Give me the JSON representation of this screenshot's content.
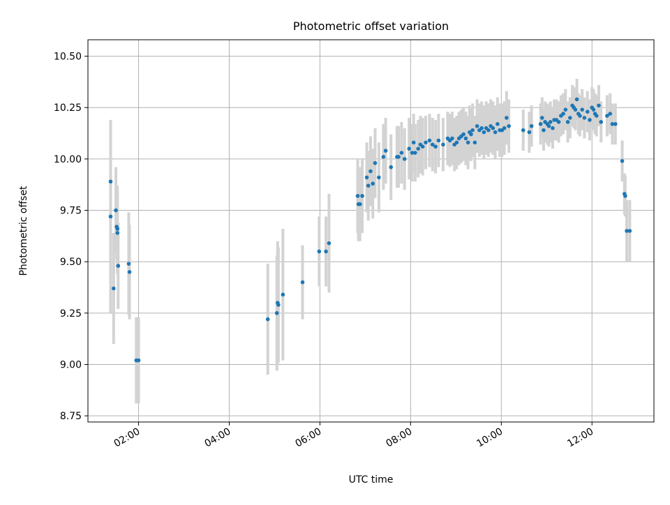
{
  "chart_data": {
    "type": "scatter",
    "title": "Photometric offset variation",
    "xlabel": "UTC time",
    "ylabel": "Photometric offset",
    "x_is_time": true,
    "xlim": [
      "00:53",
      "13:22"
    ],
    "ylim": [
      8.72,
      10.58
    ],
    "grid": true,
    "x_ticks": [
      "02:00",
      "04:00",
      "06:00",
      "08:00",
      "10:00",
      "12:00"
    ],
    "y_ticks": [
      "8.75",
      "9.00",
      "9.25",
      "9.50",
      "9.75",
      "10.00",
      "10.25",
      "10.50"
    ],
    "colors": {
      "point": "#1f77b4",
      "error_bar": "#d3d3d3",
      "grid": "#b0b0b0"
    },
    "series": [
      {
        "x": [
          "01:23",
          "01:23",
          "01:27",
          "01:30",
          "01:31",
          "01:32",
          "01:32",
          "01:33",
          "01:47",
          "01:48",
          "01:57",
          "02:00",
          "04:51",
          "05:03",
          "05:04",
          "05:05",
          "05:11",
          "05:37",
          "05:59",
          "06:08",
          "06:12",
          "06:50",
          "06:51",
          "06:53",
          "06:56",
          "07:02",
          "07:04",
          "07:07",
          "07:10",
          "07:13",
          "07:18",
          "07:24",
          "07:27",
          "07:34",
          "07:42",
          "07:44",
          "07:48",
          "07:52",
          "07:58",
          "08:02",
          "08:04",
          "08:06",
          "08:10",
          "08:13",
          "08:16",
          "08:20",
          "08:25",
          "08:29",
          "08:33",
          "08:37",
          "08:43",
          "08:49",
          "08:52",
          "08:55",
          "08:58",
          "09:01",
          "09:04",
          "09:07",
          "09:10",
          "09:13",
          "09:16",
          "09:18",
          "09:20",
          "09:22",
          "09:25",
          "09:28",
          "09:31",
          "09:34",
          "09:37",
          "09:40",
          "09:43",
          "09:46",
          "09:49",
          "09:52",
          "09:55",
          "09:58",
          "10:01",
          "10:04",
          "10:07",
          "10:10",
          "10:29",
          "10:37",
          "10:40",
          "10:52",
          "10:54",
          "10:56",
          "10:58",
          "11:01",
          "11:03",
          "11:05",
          "11:08",
          "11:10",
          "11:13",
          "11:16",
          "11:19",
          "11:22",
          "11:25",
          "11:28",
          "11:31",
          "11:34",
          "11:36",
          "11:38",
          "11:40",
          "11:42",
          "11:44",
          "11:47",
          "11:50",
          "11:54",
          "11:57",
          "12:00",
          "12:02",
          "12:04",
          "12:06",
          "12:09",
          "12:12",
          "12:20",
          "12:24",
          "12:27",
          "12:31",
          "12:40",
          "12:43",
          "12:44",
          "12:46",
          "12:50"
        ],
        "y": [
          9.89,
          9.72,
          9.37,
          9.75,
          9.67,
          9.64,
          9.66,
          9.48,
          9.49,
          9.45,
          9.02,
          9.02,
          9.22,
          9.25,
          9.3,
          9.29,
          9.34,
          9.4,
          9.55,
          9.55,
          9.59,
          9.82,
          9.78,
          9.78,
          9.82,
          9.91,
          9.87,
          9.94,
          9.88,
          9.98,
          9.91,
          10.01,
          10.04,
          9.96,
          10.01,
          10.01,
          10.03,
          10.0,
          10.05,
          10.03,
          10.08,
          10.03,
          10.05,
          10.07,
          10.06,
          10.08,
          10.09,
          10.07,
          10.06,
          10.09,
          10.07,
          10.1,
          10.09,
          10.1,
          10.07,
          10.08,
          10.1,
          10.11,
          10.12,
          10.1,
          10.08,
          10.13,
          10.12,
          10.14,
          10.08,
          10.16,
          10.14,
          10.15,
          10.13,
          10.15,
          10.14,
          10.16,
          10.15,
          10.13,
          10.17,
          10.14,
          10.14,
          10.15,
          10.2,
          10.16,
          10.14,
          10.13,
          10.16,
          10.17,
          10.2,
          10.14,
          10.18,
          10.17,
          10.16,
          10.18,
          10.15,
          10.19,
          10.19,
          10.18,
          10.21,
          10.22,
          10.24,
          10.18,
          10.2,
          10.26,
          10.25,
          10.24,
          10.29,
          10.22,
          10.21,
          10.24,
          10.2,
          10.23,
          10.19,
          10.25,
          10.24,
          10.22,
          10.21,
          10.26,
          10.18,
          10.21,
          10.22,
          10.17,
          10.17,
          9.99,
          9.83,
          9.82,
          9.65,
          9.65
        ],
        "err": [
          0.09,
          0.47,
          0.27,
          0.21,
          0.16,
          0.2,
          0.21,
          0.21,
          0.25,
          0.23,
          0.21,
          0.21,
          0.27,
          0.28,
          0.3,
          0.28,
          0.32,
          0.18,
          0.17,
          0.17,
          0.24,
          0.18,
          0.18,
          0.18,
          0.18,
          0.17,
          0.17,
          0.17,
          0.17,
          0.17,
          0.17,
          0.16,
          0.16,
          0.16,
          0.15,
          0.15,
          0.15,
          0.15,
          0.15,
          0.14,
          0.14,
          0.14,
          0.14,
          0.14,
          0.14,
          0.13,
          0.13,
          0.13,
          0.13,
          0.13,
          0.13,
          0.13,
          0.13,
          0.13,
          0.13,
          0.13,
          0.13,
          0.13,
          0.13,
          0.13,
          0.13,
          0.13,
          0.13,
          0.13,
          0.13,
          0.13,
          0.13,
          0.13,
          0.13,
          0.13,
          0.13,
          0.13,
          0.13,
          0.13,
          0.13,
          0.13,
          0.13,
          0.13,
          0.13,
          0.13,
          0.1,
          0.1,
          0.1,
          0.1,
          0.1,
          0.1,
          0.1,
          0.1,
          0.1,
          0.1,
          0.1,
          0.1,
          0.1,
          0.1,
          0.1,
          0.1,
          0.1,
          0.1,
          0.1,
          0.1,
          0.1,
          0.1,
          0.1,
          0.1,
          0.1,
          0.1,
          0.1,
          0.1,
          0.1,
          0.1,
          0.1,
          0.1,
          0.1,
          0.1,
          0.1,
          0.1,
          0.1,
          0.1,
          0.1,
          0.1,
          0.1,
          0.1,
          0.15,
          0.15
        ]
      }
    ]
  }
}
